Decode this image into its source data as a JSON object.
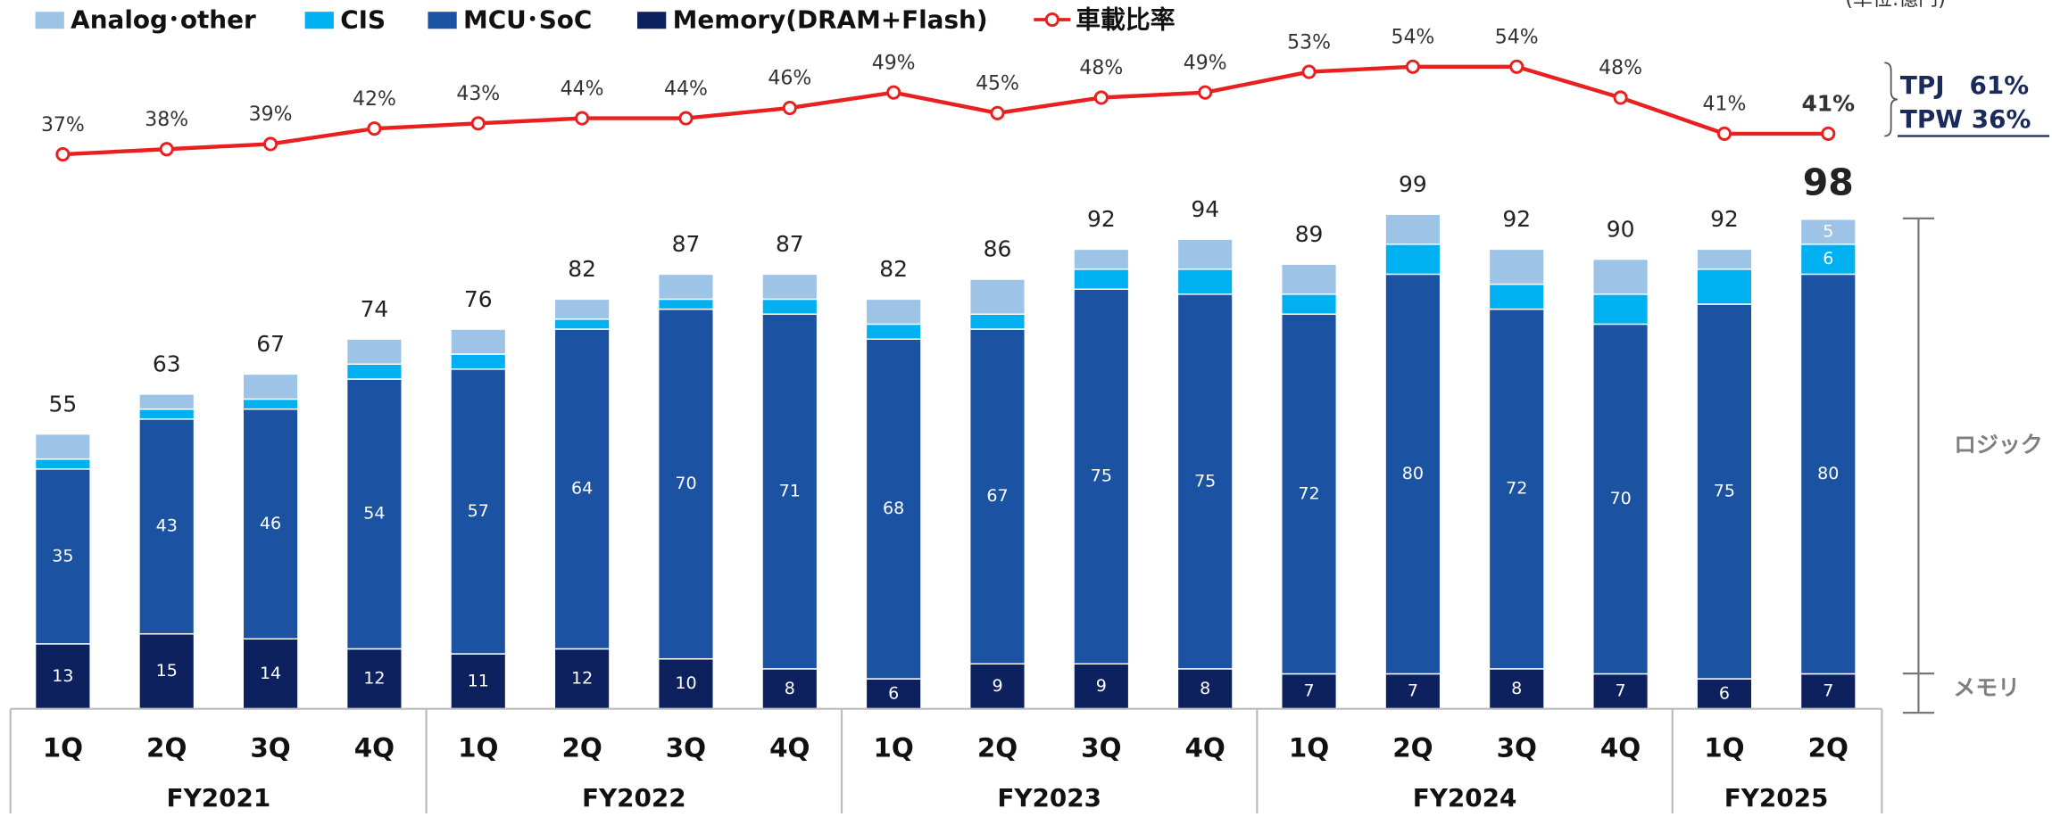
{
  "chart_data": {
    "type": "bar",
    "stacked": true,
    "unit": "(単位:億円)",
    "categories": [
      "1Q",
      "2Q",
      "3Q",
      "4Q",
      "1Q",
      "2Q",
      "3Q",
      "4Q",
      "1Q",
      "2Q",
      "3Q",
      "4Q",
      "1Q",
      "2Q",
      "3Q",
      "4Q",
      "1Q",
      "2Q"
    ],
    "groups": [
      {
        "label": "FY2021",
        "size": 4
      },
      {
        "label": "FY2022",
        "size": 4
      },
      {
        "label": "FY2023",
        "size": 4
      },
      {
        "label": "FY2024",
        "size": 4
      },
      {
        "label": "FY2025",
        "size": 2
      }
    ],
    "series": [
      {
        "name": "Memory(DRAM+Flash)",
        "color": "#0d215e",
        "values": [
          13,
          15,
          14,
          12,
          11,
          12,
          10,
          8,
          6,
          9,
          9,
          8,
          7,
          7,
          8,
          7,
          6,
          7
        ]
      },
      {
        "name": "MCU･SoC",
        "color": "#1c52a2",
        "values": [
          35,
          43,
          46,
          54,
          57,
          64,
          70,
          71,
          68,
          67,
          75,
          75,
          72,
          80,
          72,
          70,
          75,
          80
        ]
      },
      {
        "name": "CIS",
        "color": "#00b0f0",
        "values": [
          2,
          2,
          2,
          3,
          3,
          2,
          2,
          3,
          3,
          3,
          4,
          5,
          4,
          6,
          5,
          6,
          7,
          6
        ],
        "value_labels": [
          null,
          null,
          null,
          null,
          null,
          null,
          null,
          null,
          null,
          null,
          null,
          null,
          null,
          null,
          null,
          null,
          null,
          "6"
        ]
      },
      {
        "name": "Analog･other",
        "color": "#9dc3e6",
        "values": [
          5,
          3,
          5,
          5,
          5,
          4,
          5,
          5,
          5,
          7,
          4,
          6,
          6,
          6,
          7,
          7,
          4,
          5
        ],
        "value_labels": [
          null,
          null,
          null,
          null,
          null,
          null,
          null,
          null,
          null,
          null,
          null,
          null,
          null,
          null,
          null,
          null,
          null,
          "5"
        ]
      },
      {
        "name": "車載比率",
        "color": "#e8201f",
        "type": "line",
        "axis": "y2",
        "values": [
          37,
          38,
          39,
          42,
          43,
          44,
          44,
          46,
          49,
          45,
          48,
          49,
          53,
          54,
          54,
          48,
          41,
          41
        ],
        "value_labels": [
          "37%",
          "38%",
          "39%",
          "42%",
          "43%",
          "44%",
          "44%",
          "46%",
          "49%",
          "45%",
          "48%",
          "49%",
          "53%",
          "54%",
          "54%",
          "48%",
          "41%",
          "41%"
        ]
      }
    ],
    "totals": [
      55,
      63,
      67,
      74,
      76,
      82,
      87,
      87,
      82,
      86,
      92,
      94,
      89,
      99,
      92,
      90,
      92,
      98
    ],
    "legend_order": [
      3,
      2,
      1,
      0,
      4
    ],
    "annotations": {
      "tpj": "TPJ　61%",
      "tpw": "TPW 36%",
      "logic": "ロジック",
      "memory": "メモリ"
    }
  }
}
